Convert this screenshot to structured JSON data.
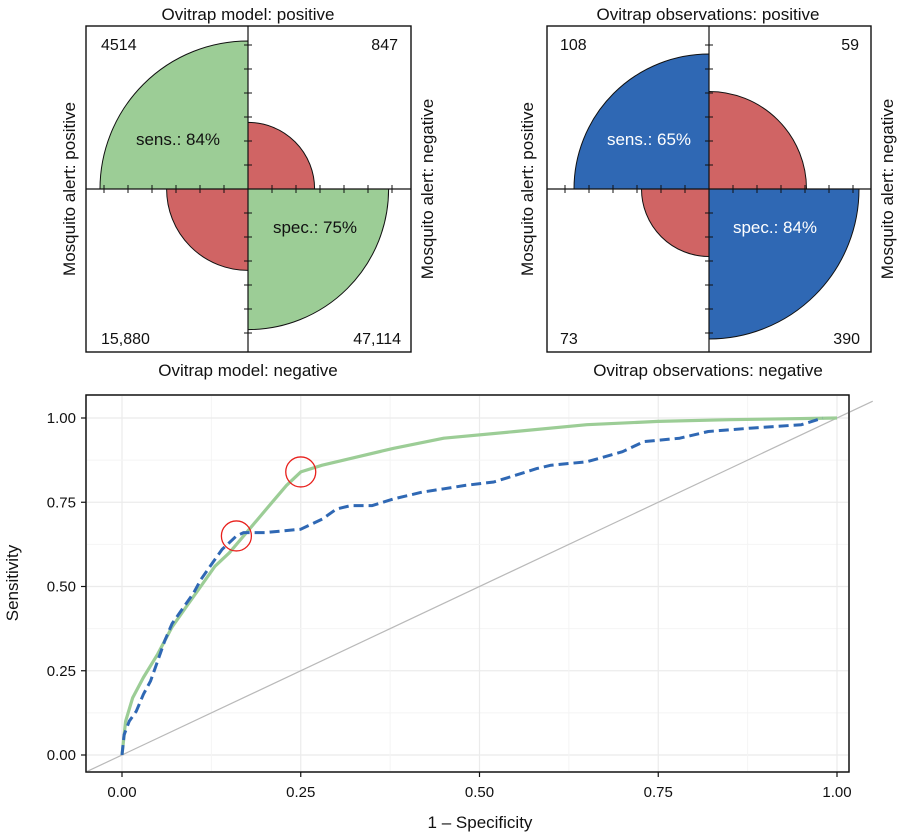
{
  "colors": {
    "model": "#9ccd96",
    "observations": "#2f68b4",
    "negative": "#d06464",
    "marker": "#e8201c",
    "diagonal": "#b9b9b9",
    "grid": "#ebebeb"
  },
  "chart_data": [
    {
      "type": "fourfold",
      "title": "Ovitrap model: positive",
      "bottom_label": "Ovitrap model: negative",
      "left_label": "Mosquito alert: positive",
      "right_label": "Mosquito alert: negative",
      "counts": {
        "top_left": "4514",
        "top_right": "847",
        "bottom_left": "15,880",
        "bottom_right": "47,114"
      },
      "sens_label": "sens.: 84%",
      "spec_label": "spec.: 75%",
      "relative_radius": {
        "top_left": 1.0,
        "top_right": 0.45,
        "bottom_left": 0.55,
        "bottom_right": 0.95
      },
      "fill_color": "#9ccd96",
      "label_color": "#111111"
    },
    {
      "type": "fourfold",
      "title": "Ovitrap observations: positive",
      "bottom_label": "Ovitrap observations: negative",
      "left_label": "Mosquito alert: positive",
      "right_label": "Mosquito alert: negative",
      "counts": {
        "top_left": "108",
        "top_right": "59",
        "bottom_left": "73",
        "bottom_right": "390"
      },
      "sens_label": "sens.: 65%",
      "spec_label": "spec.: 84%",
      "relative_radius": {
        "top_left": 0.9,
        "top_right": 0.65,
        "bottom_left": 0.45,
        "bottom_right": 1.0
      },
      "fill_color": "#2f68b4",
      "label_color": "#ffffff"
    },
    {
      "type": "line",
      "xlabel": "1 – Specificity",
      "ylabel": "Sensitivity",
      "xlim": [
        0,
        1
      ],
      "ylim": [
        0,
        1
      ],
      "x_ticks": [
        "0.00",
        "0.25",
        "0.50",
        "0.75",
        "1.00"
      ],
      "y_ticks": [
        "0.00",
        "0.25",
        "0.50",
        "0.75",
        "1.00"
      ],
      "grid": true,
      "series": [
        {
          "style": "solid",
          "color": "#9ccd96",
          "points": [
            [
              0,
              0
            ],
            [
              0.005,
              0.1
            ],
            [
              0.015,
              0.17
            ],
            [
              0.03,
              0.23
            ],
            [
              0.05,
              0.3
            ],
            [
              0.07,
              0.38
            ],
            [
              0.09,
              0.44
            ],
            [
              0.11,
              0.5
            ],
            [
              0.13,
              0.56
            ],
            [
              0.15,
              0.6
            ],
            [
              0.17,
              0.65
            ],
            [
              0.19,
              0.7
            ],
            [
              0.21,
              0.75
            ],
            [
              0.23,
              0.8
            ],
            [
              0.25,
              0.84
            ],
            [
              0.28,
              0.86
            ],
            [
              0.32,
              0.88
            ],
            [
              0.38,
              0.91
            ],
            [
              0.45,
              0.94
            ],
            [
              0.55,
              0.96
            ],
            [
              0.65,
              0.98
            ],
            [
              0.75,
              0.99
            ],
            [
              0.85,
              0.995
            ],
            [
              1,
              1
            ]
          ]
        },
        {
          "style": "dashed",
          "color": "#2f68b4",
          "points": [
            [
              0,
              0
            ],
            [
              0.003,
              0.06
            ],
            [
              0.01,
              0.1
            ],
            [
              0.02,
              0.13
            ],
            [
              0.03,
              0.18
            ],
            [
              0.04,
              0.22
            ],
            [
              0.05,
              0.28
            ],
            [
              0.06,
              0.34
            ],
            [
              0.07,
              0.39
            ],
            [
              0.08,
              0.42
            ],
            [
              0.09,
              0.45
            ],
            [
              0.1,
              0.48
            ],
            [
              0.11,
              0.52
            ],
            [
              0.12,
              0.55
            ],
            [
              0.13,
              0.58
            ],
            [
              0.14,
              0.61
            ],
            [
              0.15,
              0.63
            ],
            [
              0.16,
              0.65
            ],
            [
              0.17,
              0.66
            ],
            [
              0.2,
              0.66
            ],
            [
              0.25,
              0.67
            ],
            [
              0.28,
              0.7
            ],
            [
              0.3,
              0.73
            ],
            [
              0.32,
              0.74
            ],
            [
              0.35,
              0.74
            ],
            [
              0.38,
              0.76
            ],
            [
              0.42,
              0.78
            ],
            [
              0.45,
              0.79
            ],
            [
              0.48,
              0.8
            ],
            [
              0.52,
              0.81
            ],
            [
              0.55,
              0.83
            ],
            [
              0.58,
              0.85
            ],
            [
              0.6,
              0.86
            ],
            [
              0.65,
              0.87
            ],
            [
              0.7,
              0.9
            ],
            [
              0.73,
              0.93
            ],
            [
              0.78,
              0.94
            ],
            [
              0.82,
              0.96
            ],
            [
              0.88,
              0.97
            ],
            [
              0.95,
              0.98
            ],
            [
              0.98,
              1
            ]
          ]
        }
      ],
      "reference_line": [
        [
          0,
          0
        ],
        [
          1,
          1
        ]
      ],
      "highlighted_points": [
        [
          0.25,
          0.84
        ],
        [
          0.16,
          0.65
        ]
      ]
    }
  ]
}
